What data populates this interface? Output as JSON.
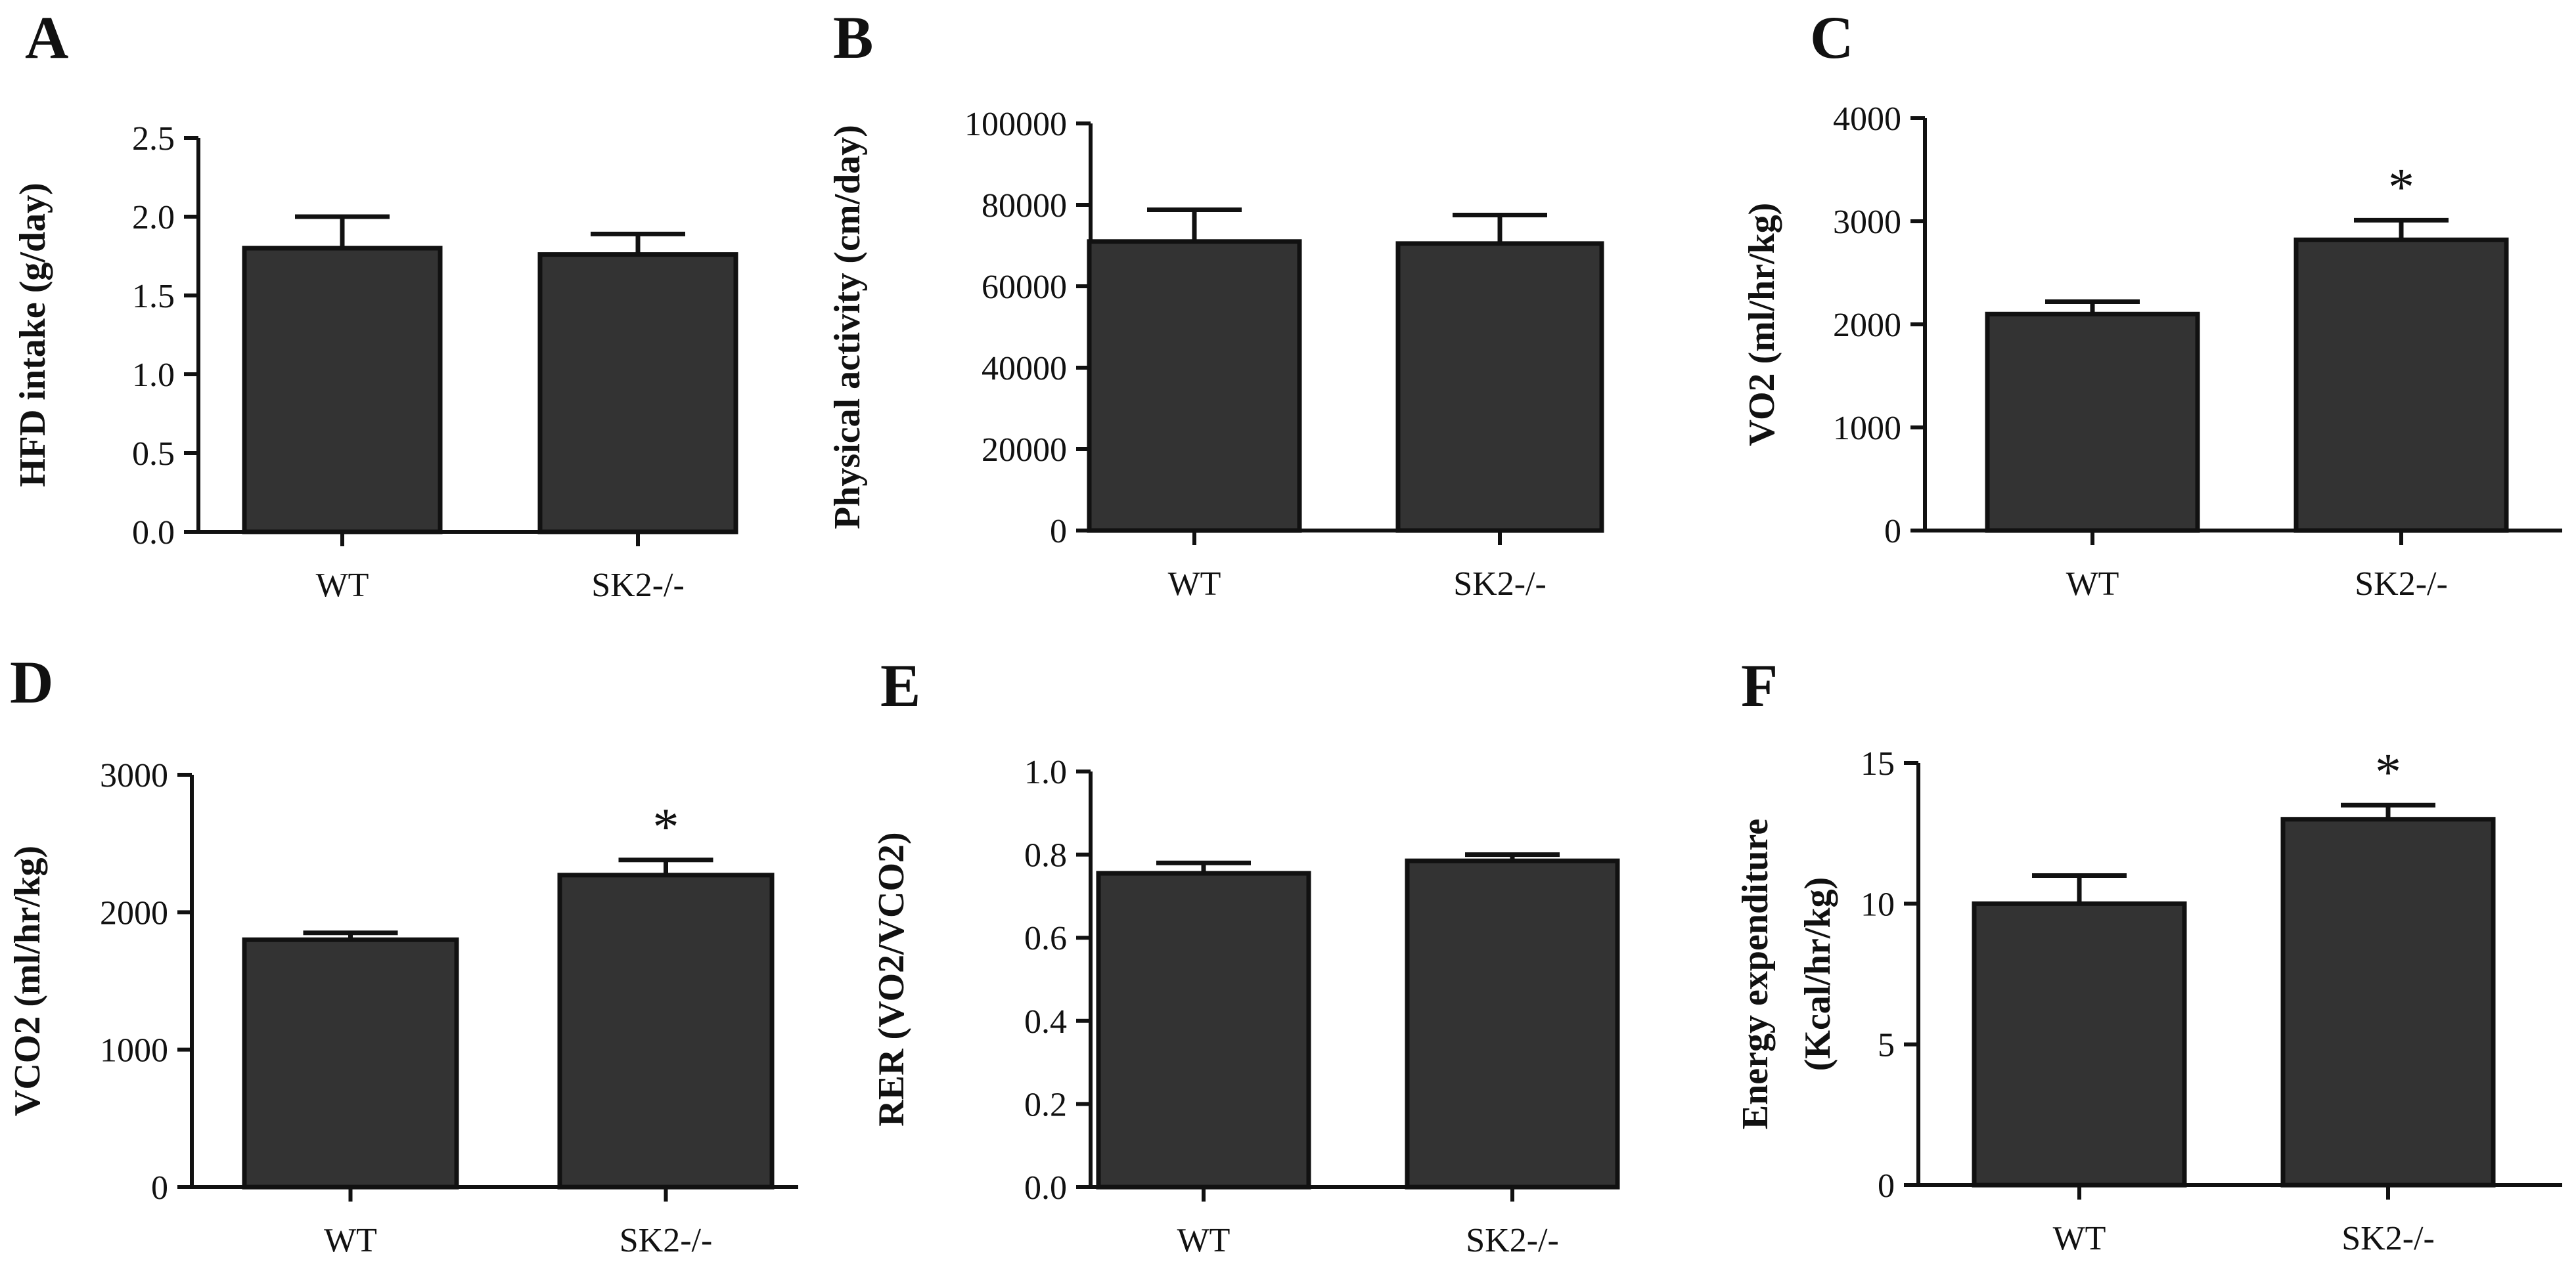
{
  "chart_data": [
    {
      "panel": "A",
      "type": "bar",
      "categories": [
        "WT",
        "SK2-/-"
      ],
      "values": [
        1.8,
        1.76
      ],
      "errors": [
        0.2,
        0.13
      ],
      "significance": [
        "",
        ""
      ],
      "ylabel": "HFD intake (g/day)",
      "ylim": [
        0,
        2.5
      ],
      "yticks": [
        "0.0",
        "0.5",
        "1.0",
        "1.5",
        "2.0",
        "2.5"
      ],
      "bar_color": "#333333"
    },
    {
      "panel": "B",
      "type": "bar",
      "categories": [
        "WT",
        "SK2-/-"
      ],
      "values": [
        71000,
        70500
      ],
      "errors": [
        7800,
        7000
      ],
      "significance": [
        "",
        ""
      ],
      "ylabel": "Physical activity (cm/day)",
      "ylim": [
        0,
        100000
      ],
      "yticks": [
        "0",
        "20000",
        "40000",
        "60000",
        "80000",
        "100000"
      ],
      "bar_color": "#333333"
    },
    {
      "panel": "C",
      "type": "bar",
      "categories": [
        "WT",
        "SK2-/-"
      ],
      "values": [
        2100,
        2820
      ],
      "errors": [
        120,
        190
      ],
      "significance": [
        "",
        "*"
      ],
      "ylabel": "VO2 (ml/hr/kg)",
      "ylim": [
        0,
        4000
      ],
      "yticks": [
        "0",
        "1000",
        "2000",
        "3000",
        "4000"
      ],
      "bar_color": "#333333"
    },
    {
      "panel": "D",
      "type": "bar",
      "categories": [
        "WT",
        "SK2-/-"
      ],
      "values": [
        1800,
        2270
      ],
      "errors": [
        50,
        110
      ],
      "significance": [
        "",
        "*"
      ],
      "ylabel": "VCO2 (ml/hr/kg)",
      "ylim": [
        0,
        3000
      ],
      "yticks": [
        "0",
        "1000",
        "2000",
        "3000"
      ],
      "bar_color": "#333333"
    },
    {
      "panel": "E",
      "type": "bar",
      "categories": [
        "WT",
        "SK2-/-"
      ],
      "values": [
        0.755,
        0.785
      ],
      "errors": [
        0.025,
        0.015
      ],
      "significance": [
        "",
        ""
      ],
      "ylabel": "RER (VO2/VCO2)",
      "ylim": [
        0,
        1.0
      ],
      "yticks": [
        "0.0",
        "0.2",
        "0.4",
        "0.6",
        "0.8",
        "1.0"
      ],
      "bar_color": "#333333"
    },
    {
      "panel": "F",
      "type": "bar",
      "categories": [
        "WT",
        "SK2-/-"
      ],
      "values": [
        10.0,
        13.0
      ],
      "errors": [
        1.0,
        0.5
      ],
      "significance": [
        "",
        "*"
      ],
      "ylabel": "Energy expenditure",
      "ylabel2": "(Kcal/hr/kg)",
      "ylim": [
        0,
        15
      ],
      "yticks": [
        "0",
        "5",
        "10",
        "15"
      ],
      "bar_color": "#333333"
    }
  ]
}
